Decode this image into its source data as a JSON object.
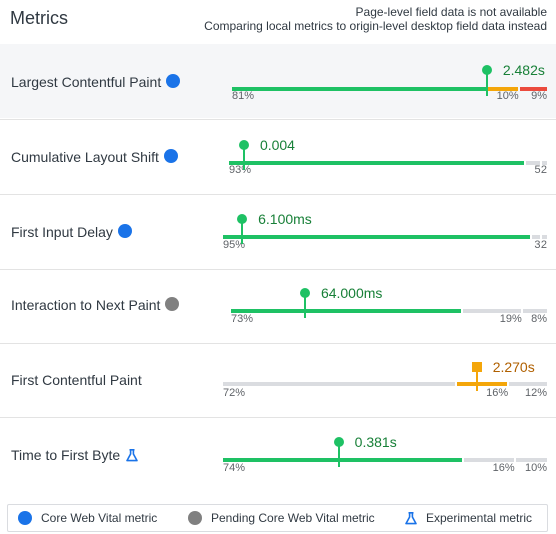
{
  "header": {
    "title": "Metrics",
    "note_line1": "Page-level field data is not available",
    "note_line2": "Comparing local metrics to origin-level desktop field data instead"
  },
  "colors": {
    "good": "#1ec164",
    "needs_improvement": "#f4a60a",
    "poor": "#eb4b3e",
    "no_data": "#dadce0",
    "core_badge": "#1a73e8",
    "pending_badge": "#808080",
    "experimental_icon": "#1a73e8"
  },
  "metrics": [
    {
      "name": "Largest Contentful Paint",
      "badge": "core",
      "value": "2.482s",
      "marker_rating": "good",
      "marker_shape": "dot",
      "distribution": [
        {
          "rating": "good",
          "share": 0.81,
          "label": "81%"
        },
        {
          "rating": "needs_improvement",
          "share": 0.1,
          "label": "10%"
        },
        {
          "rating": "poor",
          "share": 0.09,
          "label": "9%"
        }
      ]
    },
    {
      "name": "Cumulative Layout Shift",
      "badge": "core",
      "value": "0.004",
      "marker_rating": "good",
      "marker_shape": "dot",
      "distribution": [
        {
          "rating": "good",
          "share": 0.93,
          "label": "93%"
        },
        {
          "rating": "no_data",
          "share": 0.05,
          "label": "5"
        },
        {
          "rating": "no_data",
          "share": 0.02,
          "label": "2"
        }
      ]
    },
    {
      "name": "First Input Delay",
      "badge": "core",
      "value": "6.100ms",
      "marker_rating": "good",
      "marker_shape": "dot",
      "distribution": [
        {
          "rating": "good",
          "share": 0.95,
          "label": "95%"
        },
        {
          "rating": "no_data",
          "share": 0.03,
          "label": "3"
        },
        {
          "rating": "no_data",
          "share": 0.02,
          "label": "2"
        }
      ]
    },
    {
      "name": "Interaction to Next Paint",
      "badge": "pending",
      "value": "64.000ms",
      "marker_rating": "good",
      "marker_shape": "dot",
      "distribution": [
        {
          "rating": "good",
          "share": 0.73,
          "label": "73%"
        },
        {
          "rating": "no_data",
          "share": 0.19,
          "label": "19%"
        },
        {
          "rating": "no_data",
          "share": 0.08,
          "label": "8%"
        }
      ]
    },
    {
      "name": "First Contentful Paint",
      "badge": "none",
      "value": "2.270s",
      "marker_rating": "needs_improvement",
      "marker_shape": "square",
      "distribution": [
        {
          "rating": "no_data",
          "share": 0.72,
          "label": "72%"
        },
        {
          "rating": "needs_improvement",
          "share": 0.16,
          "label": "16%"
        },
        {
          "rating": "no_data",
          "share": 0.12,
          "label": "12%"
        }
      ]
    },
    {
      "name": "Time to First Byte",
      "badge": "experimental",
      "value": "0.381s",
      "marker_rating": "good",
      "marker_shape": "dot",
      "distribution": [
        {
          "rating": "good",
          "share": 0.74,
          "label": "74%"
        },
        {
          "rating": "no_data",
          "share": 0.16,
          "label": "16%"
        },
        {
          "rating": "no_data",
          "share": 0.1,
          "label": "10%"
        }
      ]
    }
  ],
  "legend": {
    "core": "Core Web Vital metric",
    "pending": "Pending Core Web Vital metric",
    "experimental": "Experimental metric"
  }
}
